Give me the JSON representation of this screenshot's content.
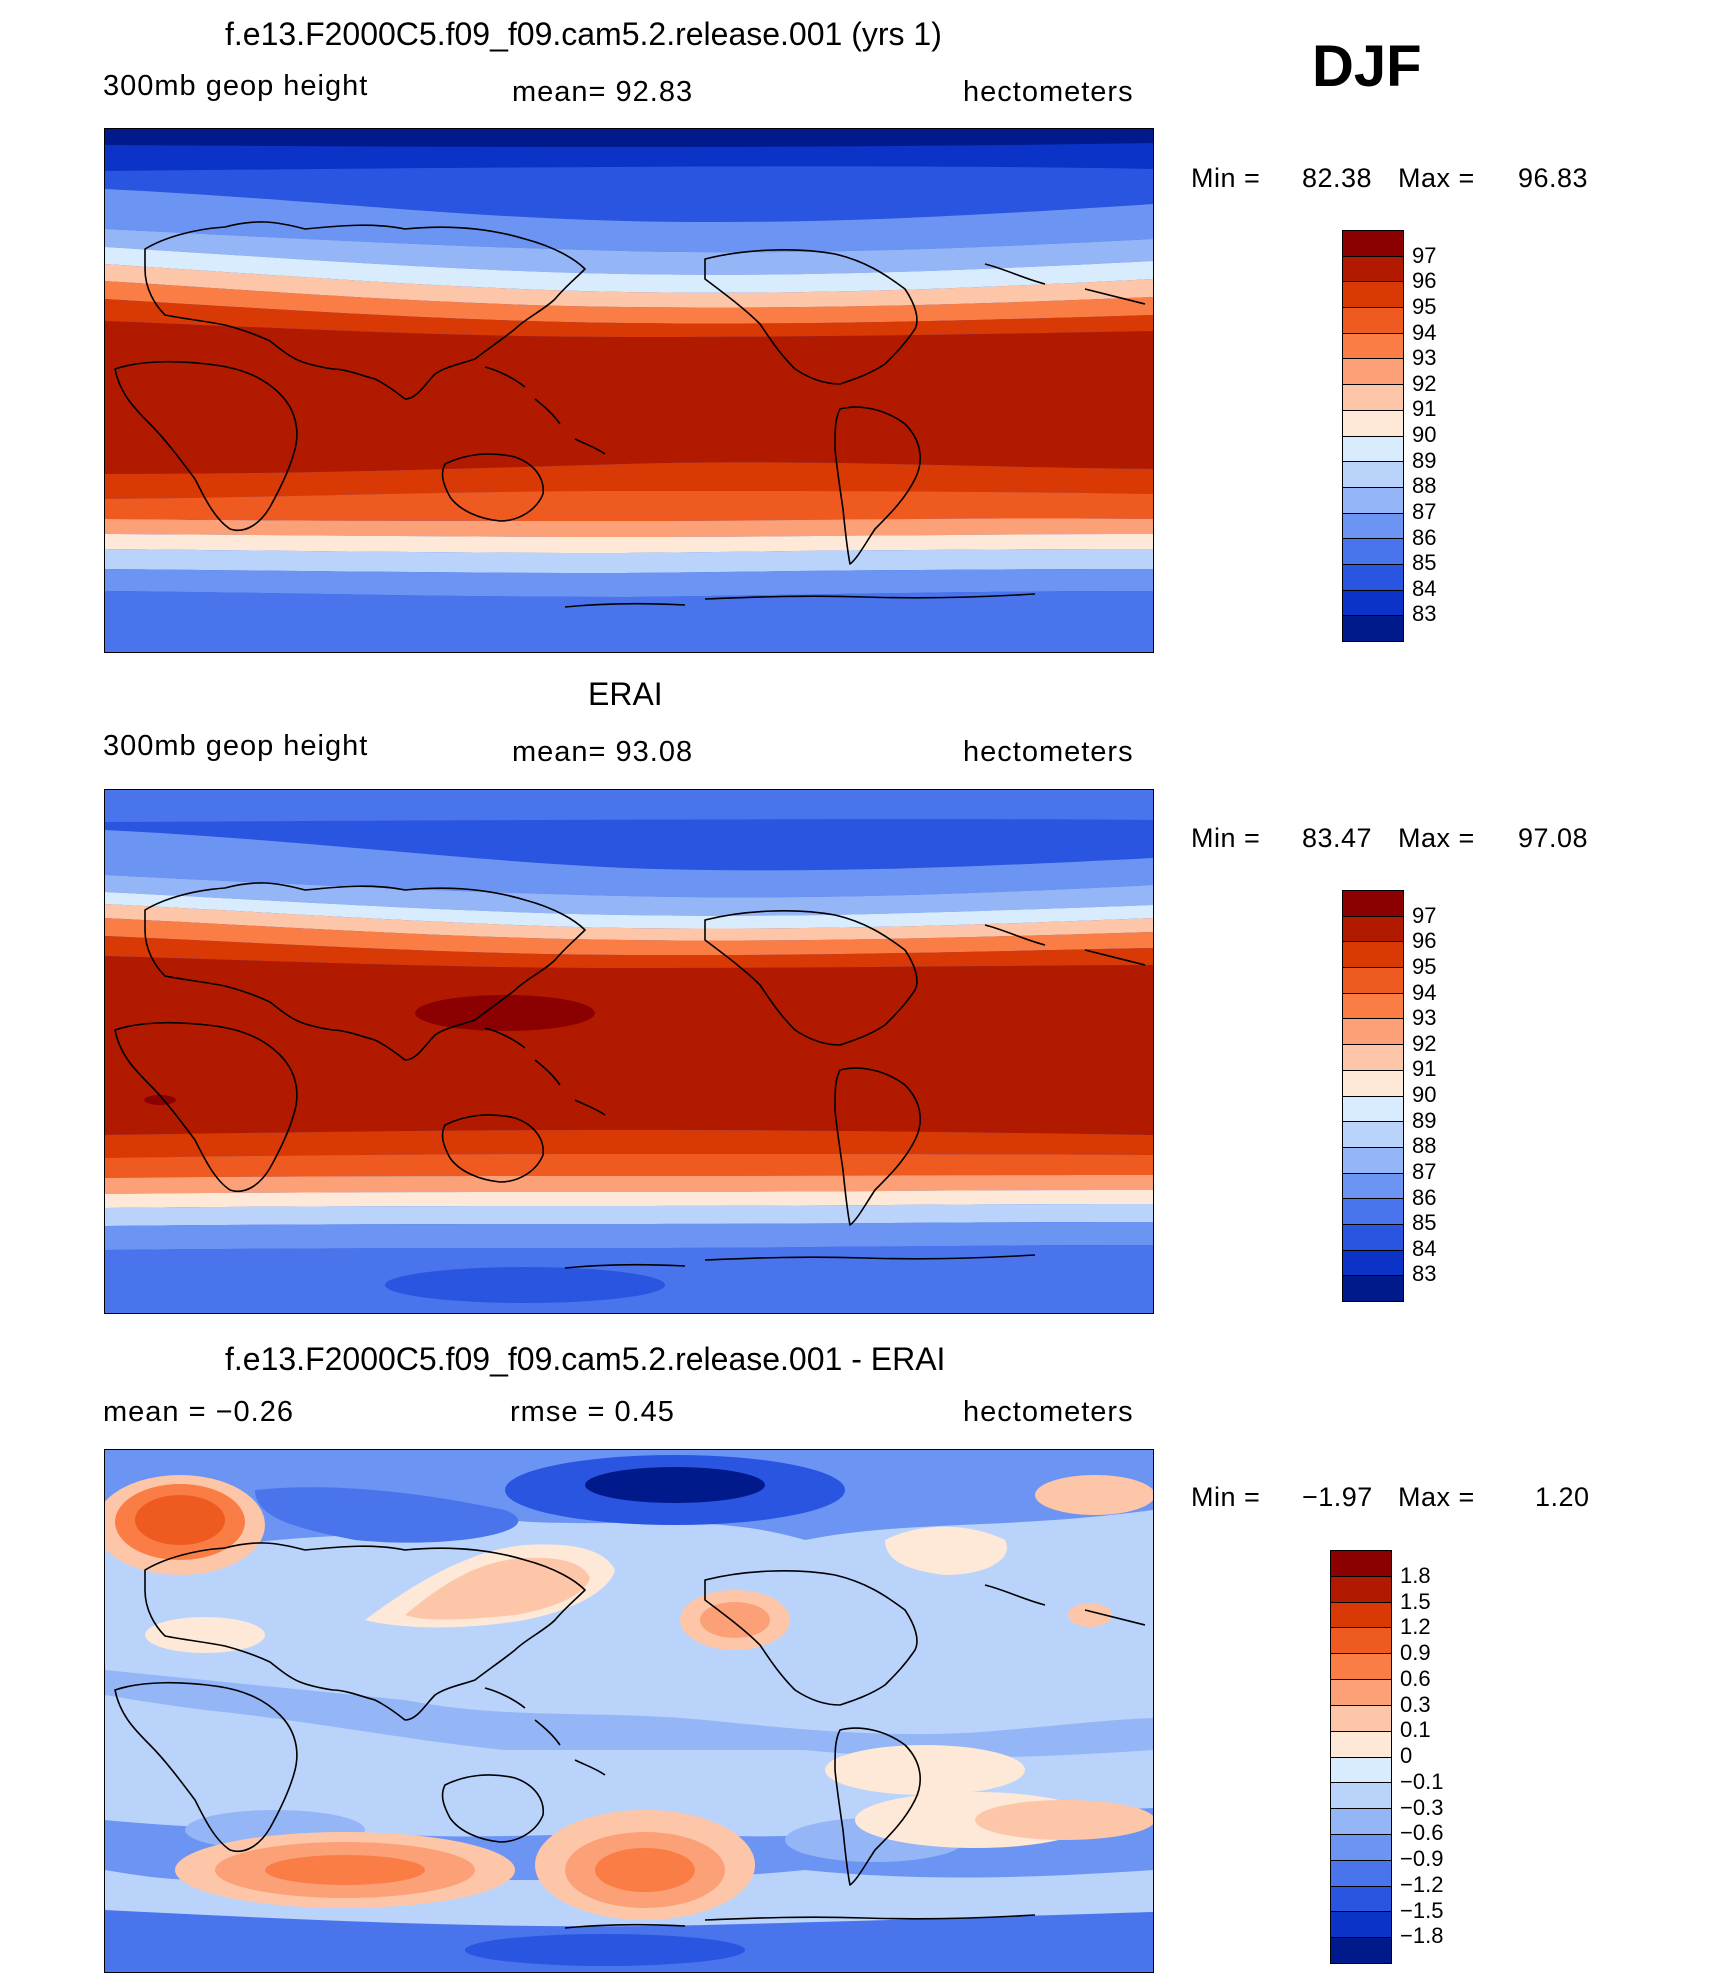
{
  "season": "DJF",
  "panels": [
    {
      "id": "model",
      "title": "f.e13.F2000C5.f09_f09.cam5.2.release.001 (yrs 1)",
      "left_label": "300mb geop height",
      "center_label": "mean=   92.83",
      "right_label": "hectometers",
      "min_label": "Min =",
      "min_value": "82.38",
      "max_label": "Max =",
      "max_value": "96.83",
      "colorbar": {
        "labels": [
          "97",
          "96",
          "95",
          "94",
          "93",
          "92",
          "91",
          "90",
          "89",
          "88",
          "87",
          "86",
          "85",
          "84",
          "83"
        ],
        "colors": [
          "#8b0000",
          "#b21a00",
          "#d93a05",
          "#ef5a20",
          "#fa7d45",
          "#fca078",
          "#fdc6a8",
          "#fee8d8",
          "#d9ecfd",
          "#b9d3fb",
          "#94b6f7",
          "#6c94f2",
          "#4a74ec",
          "#2a55e1",
          "#0c33c8",
          "#001a8c"
        ]
      }
    },
    {
      "id": "obs",
      "title": "ERAI",
      "left_label": "300mb geop height",
      "center_label": "mean=   93.08",
      "right_label": "hectometers",
      "min_label": "Min =",
      "min_value": "83.47",
      "max_label": "Max =",
      "max_value": "97.08",
      "colorbar": {
        "labels": [
          "97",
          "96",
          "95",
          "94",
          "93",
          "92",
          "91",
          "90",
          "89",
          "88",
          "87",
          "86",
          "85",
          "84",
          "83"
        ],
        "colors": [
          "#8b0000",
          "#b21a00",
          "#d93a05",
          "#ef5a20",
          "#fa7d45",
          "#fca078",
          "#fdc6a8",
          "#fee8d8",
          "#d9ecfd",
          "#b9d3fb",
          "#94b6f7",
          "#6c94f2",
          "#4a74ec",
          "#2a55e1",
          "#0c33c8",
          "#001a8c"
        ]
      }
    },
    {
      "id": "diff",
      "title": "f.e13.F2000C5.f09_f09.cam5.2.release.001 - ERAI",
      "left_label": "mean =   −0.26",
      "center_label": "rmse =    0.45",
      "right_label": "hectometers",
      "min_label": "Min =",
      "min_value": "−1.97",
      "max_label": "Max =",
      "max_value": "1.20",
      "colorbar": {
        "labels": [
          "1.8",
          "1.5",
          "1.2",
          "0.9",
          "0.6",
          "0.3",
          "0.1",
          "0",
          "−0.1",
          "−0.3",
          "−0.6",
          "−0.9",
          "−1.2",
          "−1.5",
          "−1.8"
        ],
        "colors": [
          "#8b0000",
          "#b21a00",
          "#d93a05",
          "#ef5a20",
          "#fa7d45",
          "#fca078",
          "#fdc6a8",
          "#fee8d8",
          "#d9ecfd",
          "#b9d3fb",
          "#94b6f7",
          "#6c94f2",
          "#4a74ec",
          "#2a55e1",
          "#0c33c8",
          "#001a8c"
        ]
      }
    }
  ]
}
